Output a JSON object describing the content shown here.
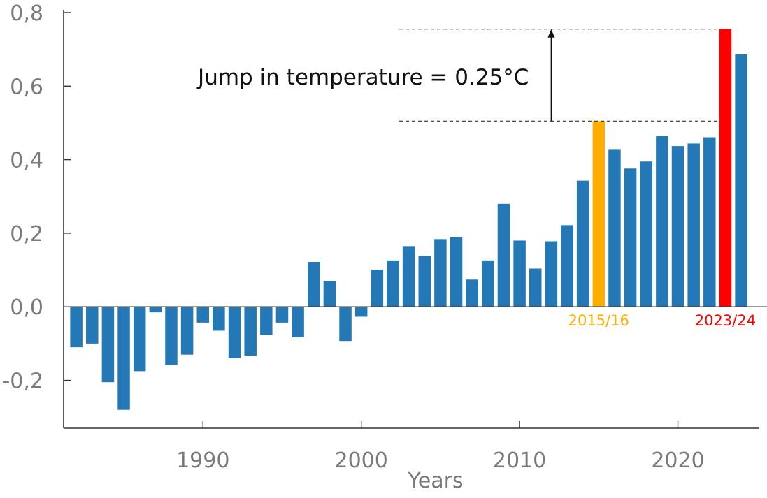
{
  "chart_data": {
    "type": "bar",
    "title": "",
    "xlabel": "Years",
    "ylabel": "",
    "xlim": [
      1981.2,
      2025.1
    ],
    "ylim": [
      -0.33,
      0.8
    ],
    "y_ticks": [
      -0.2,
      0.0,
      0.2,
      0.4,
      0.6,
      0.8
    ],
    "y_tick_labels": [
      "-0,2",
      "0,0",
      "0,2",
      "0,4",
      "0,6",
      "0,8"
    ],
    "x_ticks": [
      1990,
      2000,
      2010,
      2020
    ],
    "x_tick_labels": [
      "1990",
      "2000",
      "2010",
      "2020"
    ],
    "grid": false,
    "colors": {
      "default": "#2478b5",
      "highlight_2015": "#ffae00",
      "highlight_2023": "#ff0000",
      "axis": "#333333",
      "tick_text": "#7a7a7a"
    },
    "bars": [
      {
        "x": 1982,
        "value": -0.11
      },
      {
        "x": 1983,
        "value": -0.1
      },
      {
        "x": 1984,
        "value": -0.205
      },
      {
        "x": 1985,
        "value": -0.28
      },
      {
        "x": 1986,
        "value": -0.175
      },
      {
        "x": 1987,
        "value": -0.015
      },
      {
        "x": 1988,
        "value": -0.158
      },
      {
        "x": 1989,
        "value": -0.13
      },
      {
        "x": 1990,
        "value": -0.043
      },
      {
        "x": 1991,
        "value": -0.065
      },
      {
        "x": 1992,
        "value": -0.14
      },
      {
        "x": 1993,
        "value": -0.133
      },
      {
        "x": 1994,
        "value": -0.077
      },
      {
        "x": 1995,
        "value": -0.043
      },
      {
        "x": 1996,
        "value": -0.083
      },
      {
        "x": 1997,
        "value": 0.122
      },
      {
        "x": 1998,
        "value": 0.07
      },
      {
        "x": 1999,
        "value": -0.093
      },
      {
        "x": 2000,
        "value": -0.027
      },
      {
        "x": 2001,
        "value": 0.101
      },
      {
        "x": 2002,
        "value": 0.126
      },
      {
        "x": 2003,
        "value": 0.165
      },
      {
        "x": 2004,
        "value": 0.138
      },
      {
        "x": 2005,
        "value": 0.184
      },
      {
        "x": 2006,
        "value": 0.189
      },
      {
        "x": 2007,
        "value": 0.074
      },
      {
        "x": 2008,
        "value": 0.126
      },
      {
        "x": 2009,
        "value": 0.28
      },
      {
        "x": 2010,
        "value": 0.18
      },
      {
        "x": 2011,
        "value": 0.104
      },
      {
        "x": 2012,
        "value": 0.178
      },
      {
        "x": 2013,
        "value": 0.222
      },
      {
        "x": 2014,
        "value": 0.343
      },
      {
        "x": 2015,
        "value": 0.505,
        "highlight": "highlight_2015"
      },
      {
        "x": 2016,
        "value": 0.427
      },
      {
        "x": 2017,
        "value": 0.376
      },
      {
        "x": 2018,
        "value": 0.395
      },
      {
        "x": 2019,
        "value": 0.464
      },
      {
        "x": 2020,
        "value": 0.437
      },
      {
        "x": 2021,
        "value": 0.444
      },
      {
        "x": 2022,
        "value": 0.461
      },
      {
        "x": 2023,
        "value": 0.755,
        "highlight": "highlight_2023"
      },
      {
        "x": 2024,
        "value": 0.686
      }
    ],
    "annotations": {
      "jump_text": "Jump in temperature = 0.25°C",
      "label_2015": "2015/16",
      "label_2023": "2023/24",
      "jump_low": 0.505,
      "jump_high": 0.755,
      "jump_arrow_x": 2012.0,
      "jump_line_start_x": 2002.4,
      "jump_text_x": 2002.8,
      "jump_text_y": 0.625
    }
  }
}
